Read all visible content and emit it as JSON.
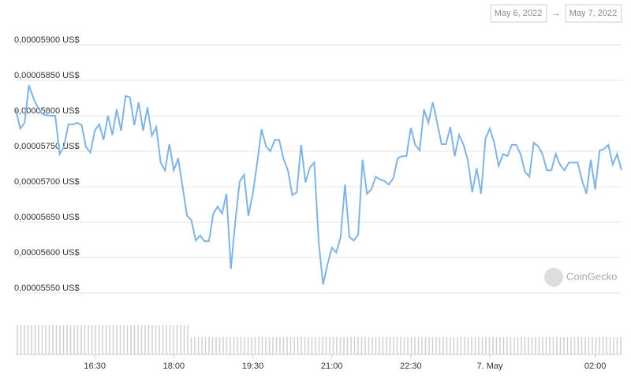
{
  "chart_data": {
    "type": "line",
    "date_from": "May 6, 2022",
    "arrow": "→",
    "date_to": "May 7, 2022",
    "watermark": "CoinGecko",
    "x": [
      0,
      5,
      10,
      15,
      20,
      25,
      30,
      35,
      40,
      45,
      50,
      55,
      60,
      65,
      70,
      75,
      80,
      85,
      90,
      95,
      100,
      105,
      110,
      115,
      120,
      125,
      130,
      135,
      140,
      145,
      150,
      155,
      160,
      165,
      170,
      175,
      180,
      185,
      190,
      195,
      200,
      205,
      210,
      215,
      220,
      225,
      230,
      235,
      240,
      245,
      250,
      255,
      260,
      265,
      270,
      275,
      280,
      285,
      290,
      295,
      300,
      305,
      310,
      315,
      320,
      325,
      330,
      335,
      340,
      345,
      350,
      355,
      360,
      365,
      370,
      375,
      380,
      385,
      390,
      395,
      400,
      405,
      410,
      415,
      420,
      425,
      430,
      435,
      440,
      445,
      450,
      455,
      460,
      465,
      470,
      475,
      480,
      485,
      490,
      495,
      500,
      505,
      510,
      515,
      520,
      525,
      530,
      535,
      540,
      545,
      550,
      555,
      560,
      565,
      570,
      575,
      580,
      585,
      590,
      595,
      600,
      605,
      610,
      615,
      620,
      625,
      630,
      635,
      640,
      645,
      650,
      655,
      660,
      665,
      670,
      675,
      680,
      685,
      690
    ],
    "series": [
      {
        "color": "#7cb5ec",
        "values": [
          5.809e-05,
          5.782e-05,
          5.79e-05,
          5.843e-05,
          5.825e-05,
          5.812e-05,
          5.803e-05,
          5.801e-05,
          5.8e-05,
          5.8e-05,
          5.746e-05,
          5.757e-05,
          5.788e-05,
          5.788e-05,
          5.79e-05,
          5.787e-05,
          5.756e-05,
          5.748e-05,
          5.779e-05,
          5.788e-05,
          5.766e-05,
          5.8e-05,
          5.773e-05,
          5.809e-05,
          5.779e-05,
          5.828e-05,
          5.826e-05,
          5.787e-05,
          5.819e-05,
          5.779e-05,
          5.812e-05,
          5.772e-05,
          5.784e-05,
          5.734e-05,
          5.723e-05,
          5.76e-05,
          5.723e-05,
          5.74e-05,
          5.7e-05,
          5.659e-05,
          5.653e-05,
          5.624e-05,
          5.631e-05,
          5.623e-05,
          5.623e-05,
          5.662e-05,
          5.672e-05,
          5.662e-05,
          5.69e-05,
          5.584e-05,
          5.65e-05,
          5.707e-05,
          5.717e-05,
          5.659e-05,
          5.69e-05,
          5.734e-05,
          5.781e-05,
          5.757e-05,
          5.75e-05,
          5.766e-05,
          5.766e-05,
          5.739e-05,
          5.723e-05,
          5.688e-05,
          5.692e-05,
          5.759e-05,
          5.706e-05,
          5.727e-05,
          5.734e-05,
          5.623e-05,
          5.562e-05,
          5.59e-05,
          5.614e-05,
          5.607e-05,
          5.629e-05,
          5.703e-05,
          5.629e-05,
          5.624e-05,
          5.632e-05,
          5.738e-05,
          5.69e-05,
          5.696e-05,
          5.714e-05,
          5.71e-05,
          5.708e-05,
          5.703e-05,
          5.712e-05,
          5.74e-05,
          5.743e-05,
          5.743e-05,
          5.783e-05,
          5.759e-05,
          5.751e-05,
          5.809e-05,
          5.79e-05,
          5.819e-05,
          5.79e-05,
          5.76e-05,
          5.76e-05,
          5.784e-05,
          5.743e-05,
          5.773e-05,
          5.759e-05,
          5.737e-05,
          5.692e-05,
          5.726e-05,
          5.69e-05,
          5.768e-05,
          5.782e-05,
          5.762e-05,
          5.729e-05,
          5.746e-05,
          5.743e-05,
          5.759e-05,
          5.759e-05,
          5.746e-05,
          5.721e-05,
          5.714e-05,
          5.762e-05,
          5.757e-05,
          5.746e-05,
          5.723e-05,
          5.723e-05,
          5.746e-05,
          5.731e-05,
          5.723e-05,
          5.734e-05,
          5.734e-05,
          5.734e-05,
          5.709e-05,
          5.69e-05,
          5.738e-05,
          5.696e-05,
          5.751e-05,
          5.753e-05,
          5.759e-05,
          5.731e-05,
          5.746e-05,
          5.723e-05
        ]
      }
    ],
    "xlim": [
      0,
      690
    ],
    "xticks": [
      {
        "value": 90,
        "label": "16:30"
      },
      {
        "value": 180,
        "label": "18:00"
      },
      {
        "value": 270,
        "label": "19:30"
      },
      {
        "value": 360,
        "label": "21:00"
      },
      {
        "value": 450,
        "label": "22:30"
      },
      {
        "value": 540,
        "label": "7. May"
      },
      {
        "value": 660,
        "label": "02:00"
      }
    ],
    "ylim": [
      5.55e-05,
      5.9e-05
    ],
    "yticks": [
      {
        "value": 5.55e-05,
        "label": "0,00005550 US$"
      },
      {
        "value": 5.6e-05,
        "label": "0,00005600 US$"
      },
      {
        "value": 5.65e-05,
        "label": "0,00005650 US$"
      },
      {
        "value": 5.7e-05,
        "label": "0,00005700 US$"
      },
      {
        "value": 5.75e-05,
        "label": "0,00005750 US$"
      },
      {
        "value": 5.8e-05,
        "label": "0,00005800 US$"
      },
      {
        "value": 5.85e-05,
        "label": "0,00005850 US$"
      },
      {
        "value": 5.9e-05,
        "label": "0,00005900 US$"
      }
    ],
    "grid": true
  }
}
